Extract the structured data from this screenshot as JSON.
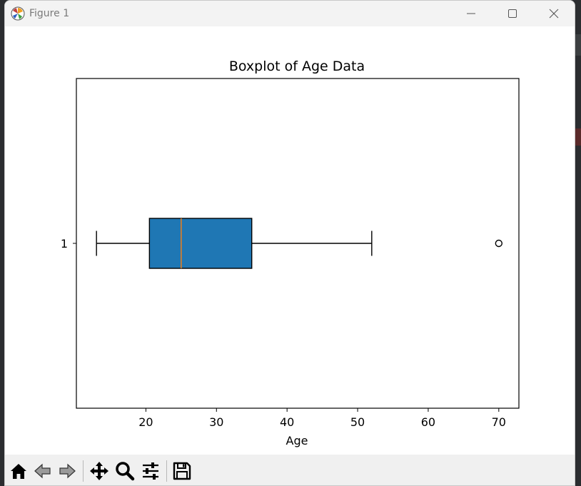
{
  "window": {
    "title": "Figure 1"
  },
  "chart_data": {
    "type": "boxplot",
    "orientation": "horizontal",
    "title": "Boxplot of Age Data",
    "xlabel": "Age",
    "ylabel": "",
    "xlim": [
      10.15,
      72.85
    ],
    "xticks": [
      20,
      30,
      40,
      50,
      60,
      70
    ],
    "xtick_labels": [
      "20",
      "30",
      "40",
      "50",
      "60",
      "70"
    ],
    "categories": [
      "1"
    ],
    "box": {
      "whisker_low": 13,
      "q1": 20.5,
      "median": 25,
      "q3": 35,
      "whisker_high": 52,
      "outliers": [
        70
      ]
    },
    "patch_artist": true,
    "colors": {
      "box_fill": "#1f77b4",
      "median_line": "#ff7f0e",
      "edge": "#000000"
    },
    "grid": false
  },
  "toolbar": {
    "buttons": [
      "home-icon",
      "back-icon",
      "forward-icon",
      "pan-icon",
      "zoom-icon",
      "configure-subplots-icon",
      "save-icon"
    ]
  }
}
